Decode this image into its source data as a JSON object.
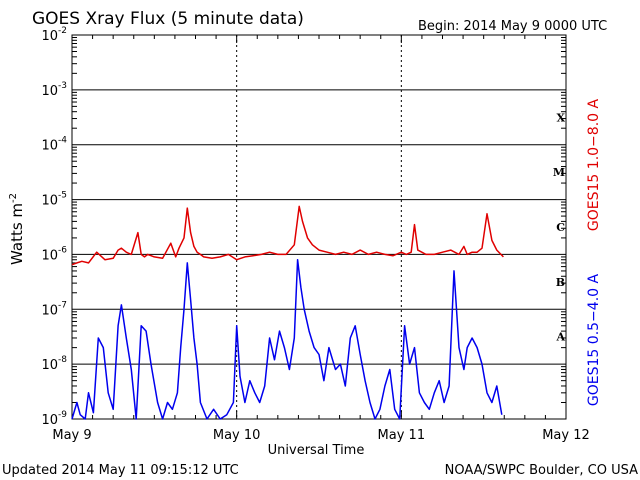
{
  "title": "GOES Xray Flux (5 minute data)",
  "begin_label": "Begin:  2014 May 9 0000 UTC",
  "footer_left": "Updated 2014 May 11 09:15:12 UTC",
  "footer_right": "NOAA/SWPC Boulder, CO USA",
  "chart_data": {
    "type": "line",
    "title": "GOES Xray Flux (5 minute data)",
    "xlabel": "Universal Time",
    "ylabel": "Watts m⁻²",
    "y_scale": "log",
    "ylim": [
      1e-09,
      0.01
    ],
    "xlim_days": [
      0,
      3
    ],
    "x_tick_labels": [
      "May 9",
      "May 10",
      "May 11",
      "May 12"
    ],
    "y_tick_labels": [
      {
        "base": "10",
        "exp": "-9"
      },
      {
        "base": "10",
        "exp": "-8"
      },
      {
        "base": "10",
        "exp": "-7"
      },
      {
        "base": "10",
        "exp": "-6"
      },
      {
        "base": "10",
        "exp": "-5"
      },
      {
        "base": "10",
        "exp": "-4"
      },
      {
        "base": "10",
        "exp": "-3"
      },
      {
        "base": "10",
        "exp": "-2"
      }
    ],
    "flare_classes": [
      {
        "label": "A",
        "at": 1e-08
      },
      {
        "label": "B",
        "at": 1e-07
      },
      {
        "label": "C",
        "at": 1e-06
      },
      {
        "label": "M",
        "at": 1e-05
      },
      {
        "label": "X",
        "at": 0.0001
      }
    ],
    "grid": true,
    "series": [
      {
        "name": "GOES15 1.0−8.0 A",
        "color": "#e00000",
        "x": [
          0.0,
          0.03,
          0.06,
          0.1,
          0.15,
          0.2,
          0.25,
          0.28,
          0.3,
          0.33,
          0.36,
          0.4,
          0.42,
          0.44,
          0.46,
          0.5,
          0.55,
          0.6,
          0.63,
          0.65,
          0.68,
          0.7,
          0.72,
          0.74,
          0.76,
          0.78,
          0.8,
          0.85,
          0.9,
          0.95,
          1.0,
          1.05,
          1.1,
          1.15,
          1.2,
          1.25,
          1.3,
          1.35,
          1.38,
          1.4,
          1.43,
          1.46,
          1.5,
          1.55,
          1.6,
          1.65,
          1.7,
          1.75,
          1.8,
          1.85,
          1.9,
          1.95,
          2.0,
          2.03,
          2.06,
          2.08,
          2.1,
          2.15,
          2.2,
          2.25,
          2.3,
          2.35,
          2.38,
          2.4,
          2.43,
          2.46,
          2.49,
          2.52,
          2.55,
          2.58,
          2.62
        ],
        "y": [
          6.5e-07,
          7e-07,
          7.5e-07,
          7e-07,
          1.1e-06,
          8e-07,
          8.5e-07,
          1.2e-06,
          1.3e-06,
          1.1e-06,
          1e-06,
          2.5e-06,
          1e-06,
          9e-07,
          1e-06,
          9e-07,
          8.5e-07,
          1.6e-06,
          9e-07,
          1.3e-06,
          2e-06,
          7e-06,
          2.5e-06,
          1.4e-06,
          1.1e-06,
          1e-06,
          9e-07,
          8.5e-07,
          9e-07,
          1e-06,
          8e-07,
          9e-07,
          9.5e-07,
          1e-06,
          1.1e-06,
          1e-06,
          1e-06,
          1.5e-06,
          7.5e-06,
          4e-06,
          2e-06,
          1.5e-06,
          1.2e-06,
          1.1e-06,
          1e-06,
          1.1e-06,
          1e-06,
          1.2e-06,
          1e-06,
          1.1e-06,
          1e-06,
          9.5e-07,
          1.1e-06,
          1e-06,
          1.1e-06,
          3.5e-06,
          1.2e-06,
          1e-06,
          1e-06,
          1.1e-06,
          1.2e-06,
          1e-06,
          1.4e-06,
          1e-06,
          1.1e-06,
          1.1e-06,
          1.3e-06,
          5.5e-06,
          1.8e-06,
          1.2e-06,
          9e-07
        ]
      },
      {
        "name": "GOES15 0.5−4.0 A",
        "color": "#0000ee",
        "x": [
          0.0,
          0.03,
          0.05,
          0.08,
          0.1,
          0.13,
          0.16,
          0.19,
          0.22,
          0.25,
          0.28,
          0.3,
          0.33,
          0.36,
          0.39,
          0.42,
          0.45,
          0.48,
          0.52,
          0.55,
          0.58,
          0.61,
          0.64,
          0.66,
          0.68,
          0.7,
          0.72,
          0.74,
          0.76,
          0.78,
          0.82,
          0.86,
          0.9,
          0.94,
          0.98,
          1.0,
          1.02,
          1.05,
          1.08,
          1.11,
          1.14,
          1.17,
          1.2,
          1.23,
          1.26,
          1.29,
          1.32,
          1.35,
          1.37,
          1.39,
          1.41,
          1.44,
          1.47,
          1.5,
          1.53,
          1.56,
          1.6,
          1.63,
          1.66,
          1.69,
          1.72,
          1.75,
          1.78,
          1.81,
          1.84,
          1.87,
          1.9,
          1.93,
          1.96,
          1.99,
          2.02,
          2.05,
          2.08,
          2.11,
          2.14,
          2.17,
          2.2,
          2.23,
          2.26,
          2.29,
          2.32,
          2.35,
          2.38,
          2.4,
          2.43,
          2.46,
          2.49,
          2.52,
          2.55,
          2.58,
          2.61
        ],
        "y": [
          1e-09,
          2e-09,
          1.2e-09,
          1e-09,
          3e-09,
          1.3e-09,
          3e-08,
          2e-08,
          3e-09,
          1.5e-09,
          5e-08,
          1.2e-07,
          3e-08,
          8e-09,
          1e-09,
          5e-08,
          4e-08,
          1e-08,
          2e-09,
          1e-09,
          2e-09,
          1.5e-09,
          3e-09,
          2e-08,
          1e-07,
          7e-07,
          1.5e-07,
          3e-08,
          1e-08,
          2e-09,
          1e-09,
          1.5e-09,
          1e-09,
          1.2e-09,
          2e-09,
          5e-08,
          6e-09,
          2e-09,
          5e-09,
          3e-09,
          2e-09,
          4e-09,
          3e-08,
          1.2e-08,
          4e-08,
          2e-08,
          8e-09,
          3e-08,
          8e-07,
          2.5e-07,
          1e-07,
          4e-08,
          2e-08,
          1.5e-08,
          5e-09,
          2e-08,
          8e-09,
          1e-08,
          4e-09,
          3e-08,
          5e-08,
          1.5e-08,
          5e-09,
          2e-09,
          1e-09,
          1.5e-09,
          4e-09,
          8e-09,
          1.5e-09,
          1e-09,
          5e-08,
          1e-08,
          2e-08,
          3e-09,
          2e-09,
          1.5e-09,
          3e-09,
          5e-09,
          2e-09,
          4e-09,
          5e-07,
          2e-08,
          8e-09,
          2e-08,
          3e-08,
          2e-08,
          1e-08,
          3e-09,
          2e-09,
          4e-09,
          1.2e-09
        ]
      }
    ]
  }
}
